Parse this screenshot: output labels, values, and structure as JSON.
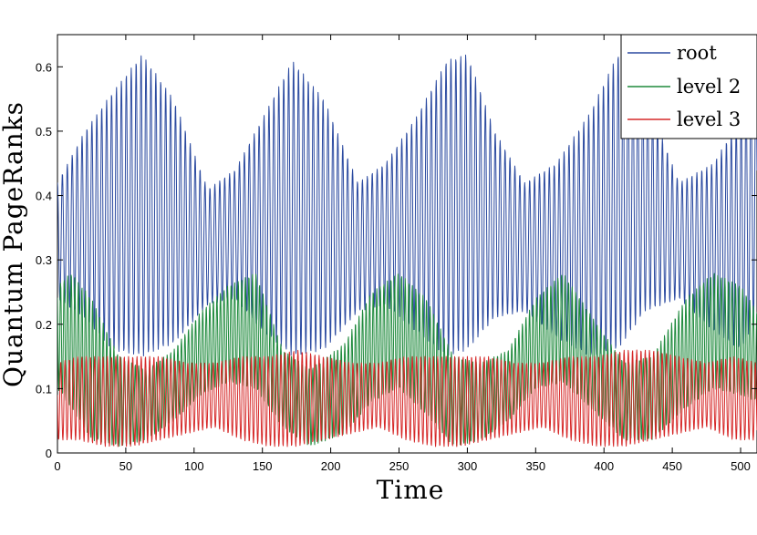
{
  "chart_data": {
    "type": "line",
    "xlabel": "Time",
    "ylabel": "Quantum PageRanks",
    "xlim": [
      0,
      512
    ],
    "ylim": [
      0,
      0.65
    ],
    "xticks": [
      0,
      50,
      100,
      150,
      200,
      250,
      300,
      350,
      400,
      450,
      500
    ],
    "yticks": [
      0,
      0.1,
      0.2,
      0.3,
      0.4,
      0.5,
      0.6
    ],
    "grid": false,
    "legend_position": "top-right",
    "series": [
      {
        "name": "root",
        "color": "#2b4aa0",
        "period": 3.6,
        "envelope_x": [
          0,
          20,
          40,
          62,
          85,
          110,
          130,
          150,
          172,
          195,
          220,
          240,
          262,
          285,
          300,
          320,
          342,
          365,
          390,
          410,
          430,
          455,
          480,
          500,
          512
        ],
        "envelope_max": [
          0.42,
          0.5,
          0.56,
          0.62,
          0.55,
          0.41,
          0.44,
          0.52,
          0.61,
          0.55,
          0.42,
          0.45,
          0.52,
          0.61,
          0.62,
          0.5,
          0.42,
          0.45,
          0.53,
          0.62,
          0.56,
          0.42,
          0.45,
          0.52,
          0.6
        ],
        "envelope_min": [
          0.24,
          0.21,
          0.16,
          0.15,
          0.17,
          0.23,
          0.24,
          0.19,
          0.15,
          0.16,
          0.22,
          0.23,
          0.19,
          0.15,
          0.16,
          0.21,
          0.22,
          0.18,
          0.15,
          0.16,
          0.22,
          0.24,
          0.19,
          0.16,
          0.21
        ]
      },
      {
        "name": "level 2",
        "color": "#1e8a3c",
        "period": 2.6,
        "envelope_x": [
          0,
          10,
          25,
          45,
          65,
          85,
          105,
          125,
          145,
          165,
          185,
          210,
          230,
          250,
          270,
          290,
          310,
          330,
          350,
          370,
          395,
          415,
          435,
          460,
          480,
          500,
          512
        ],
        "envelope_max": [
          0.26,
          0.28,
          0.24,
          0.15,
          0.13,
          0.16,
          0.22,
          0.26,
          0.28,
          0.16,
          0.13,
          0.17,
          0.25,
          0.28,
          0.24,
          0.15,
          0.14,
          0.16,
          0.24,
          0.28,
          0.2,
          0.14,
          0.15,
          0.24,
          0.28,
          0.26,
          0.22
        ],
        "envelope_min": [
          0.1,
          0.07,
          0.02,
          0.01,
          0.02,
          0.05,
          0.09,
          0.11,
          0.1,
          0.04,
          0.01,
          0.03,
          0.08,
          0.1,
          0.06,
          0.01,
          0.02,
          0.05,
          0.1,
          0.11,
          0.06,
          0.02,
          0.02,
          0.07,
          0.1,
          0.09,
          0.08
        ]
      },
      {
        "name": "level 3",
        "color": "#d62828",
        "period": 3.1,
        "envelope_x": [
          0,
          15,
          35,
          55,
          75,
          95,
          115,
          135,
          155,
          175,
          195,
          215,
          235,
          255,
          275,
          295,
          315,
          335,
          355,
          375,
          395,
          415,
          435,
          455,
          475,
          495,
          512
        ],
        "envelope_max": [
          0.14,
          0.15,
          0.15,
          0.15,
          0.15,
          0.14,
          0.14,
          0.15,
          0.15,
          0.16,
          0.15,
          0.14,
          0.14,
          0.15,
          0.15,
          0.15,
          0.15,
          0.14,
          0.14,
          0.15,
          0.15,
          0.16,
          0.16,
          0.15,
          0.14,
          0.15,
          0.14
        ],
        "envelope_min": [
          0.02,
          0.02,
          0.01,
          0.01,
          0.02,
          0.03,
          0.04,
          0.02,
          0.01,
          0.01,
          0.02,
          0.03,
          0.04,
          0.02,
          0.01,
          0.01,
          0.02,
          0.03,
          0.04,
          0.02,
          0.01,
          0.01,
          0.02,
          0.03,
          0.04,
          0.02,
          0.02
        ]
      }
    ]
  }
}
